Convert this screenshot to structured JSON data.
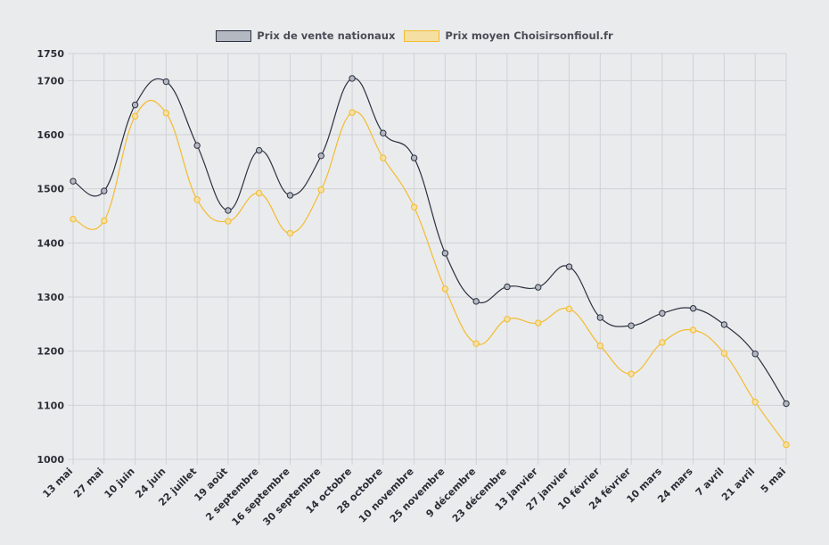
{
  "chart_data": {
    "type": "line",
    "title": "",
    "xlabel": "",
    "ylabel": "",
    "ylim": [
      1000,
      1750
    ],
    "yticks": [
      1000,
      1100,
      1200,
      1300,
      1400,
      1500,
      1600,
      1700,
      1750
    ],
    "grid": true,
    "legend_position": "top-center",
    "categories": [
      "13 mai",
      "27 mai",
      "10 juin",
      "24 juin",
      "22 juillet",
      "19 août",
      "2 septembre",
      "16 septembre",
      "30 septembre",
      "14 octobre",
      "28 octobre",
      "10 novembre",
      "25 novembre",
      "9 décembre",
      "23 décembre",
      "13 janvier",
      "27 janvier",
      "10 février",
      "24 février",
      "10 mars",
      "24 mars",
      "7 avril",
      "21 avril",
      "5 mai"
    ],
    "series": [
      {
        "name": "Prix de vente nationaux",
        "color": "#2b3140",
        "fill": "#b4b8c1",
        "values": [
          1514,
          1496,
          1655,
          1698,
          1580,
          1460,
          1571,
          1488,
          1561,
          1704,
          1603,
          1557,
          1381,
          1292,
          1319,
          1318,
          1356,
          1262,
          1247,
          1270,
          1279,
          1249,
          1195,
          1103
        ]
      },
      {
        "name": "Prix moyen Choisirsonfioul.fr",
        "color": "#f3bc2f",
        "fill": "#f5dfa3",
        "values": [
          1444,
          1441,
          1634,
          1640,
          1480,
          1440,
          1492,
          1418,
          1498,
          1641,
          1557,
          1466,
          1315,
          1214,
          1259,
          1252,
          1278,
          1210,
          1158,
          1216,
          1239,
          1196,
          1106,
          1027
        ]
      }
    ]
  }
}
